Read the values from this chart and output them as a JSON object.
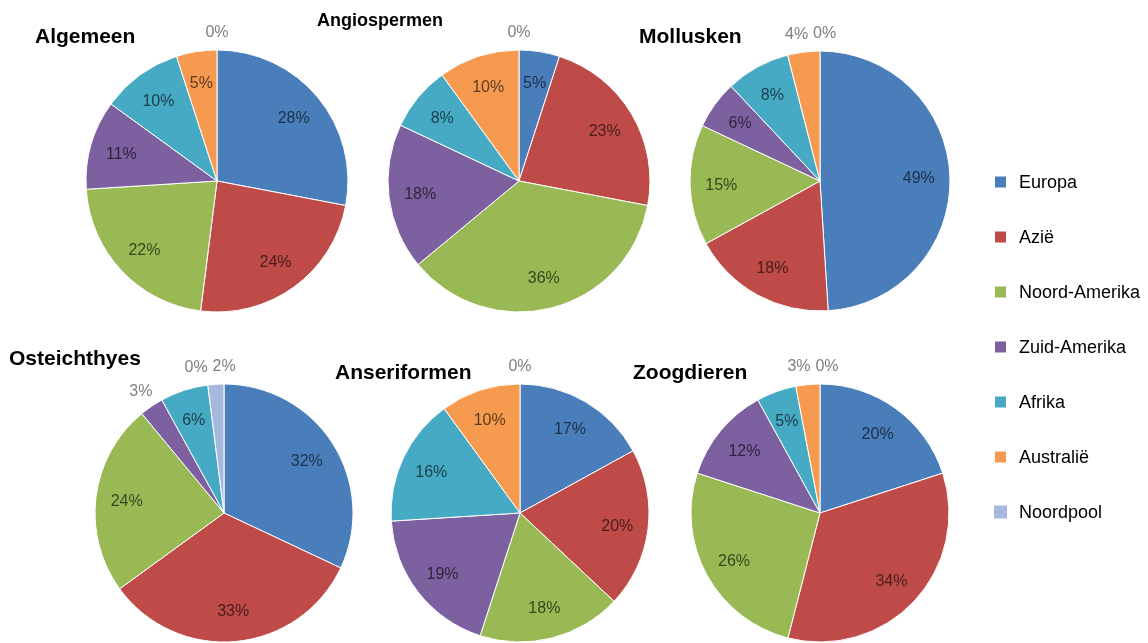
{
  "chart_data": {
    "type": "pie",
    "legend": "right",
    "categories": [
      "Europa",
      "Azië",
      "Noord-Amerika",
      "Zuid-Amerika",
      "Afrika",
      "Australië",
      "Noordpool"
    ],
    "colors": [
      "#4a7ebb",
      "#be4b48",
      "#98b954",
      "#7d60a0",
      "#46aac5",
      "#f69a4f",
      "#a5b9df"
    ],
    "series": [
      {
        "name": "Algemeen",
        "values": [
          28,
          24,
          22,
          11,
          10,
          5,
          0
        ],
        "value_labels": [
          "28%",
          "24%",
          "22%",
          "11%",
          "10%",
          "5%",
          "0%"
        ]
      },
      {
        "name": "Angiospermen",
        "values": [
          5,
          23,
          36,
          18,
          8,
          10,
          0
        ],
        "value_labels": [
          "5%",
          "23%",
          "36%",
          "18%",
          "8%",
          "10%",
          "0%"
        ]
      },
      {
        "name": "Mollusken",
        "values": [
          49,
          18,
          15,
          6,
          8,
          4,
          0
        ],
        "value_labels": [
          "49%",
          "18%",
          "15%",
          "6%",
          "8%",
          "4%",
          "0%"
        ]
      },
      {
        "name": "Osteichthyes",
        "values": [
          32,
          33,
          24,
          3,
          6,
          0,
          2
        ],
        "value_labels": [
          "32%",
          "33%",
          "24%",
          "3%",
          "6%",
          "0%",
          "2%"
        ]
      },
      {
        "name": "Anseriformen",
        "values": [
          17,
          20,
          18,
          19,
          16,
          10,
          0
        ],
        "value_labels": [
          "17%",
          "20%",
          "18%",
          "19%",
          "16%",
          "10%",
          "0%"
        ]
      },
      {
        "name": "Zoogdieren",
        "values": [
          20,
          34,
          26,
          12,
          5,
          3,
          0
        ],
        "value_labels": [
          "20%",
          "34%",
          "26%",
          "12%",
          "5%",
          "3%",
          "0%"
        ]
      }
    ]
  }
}
